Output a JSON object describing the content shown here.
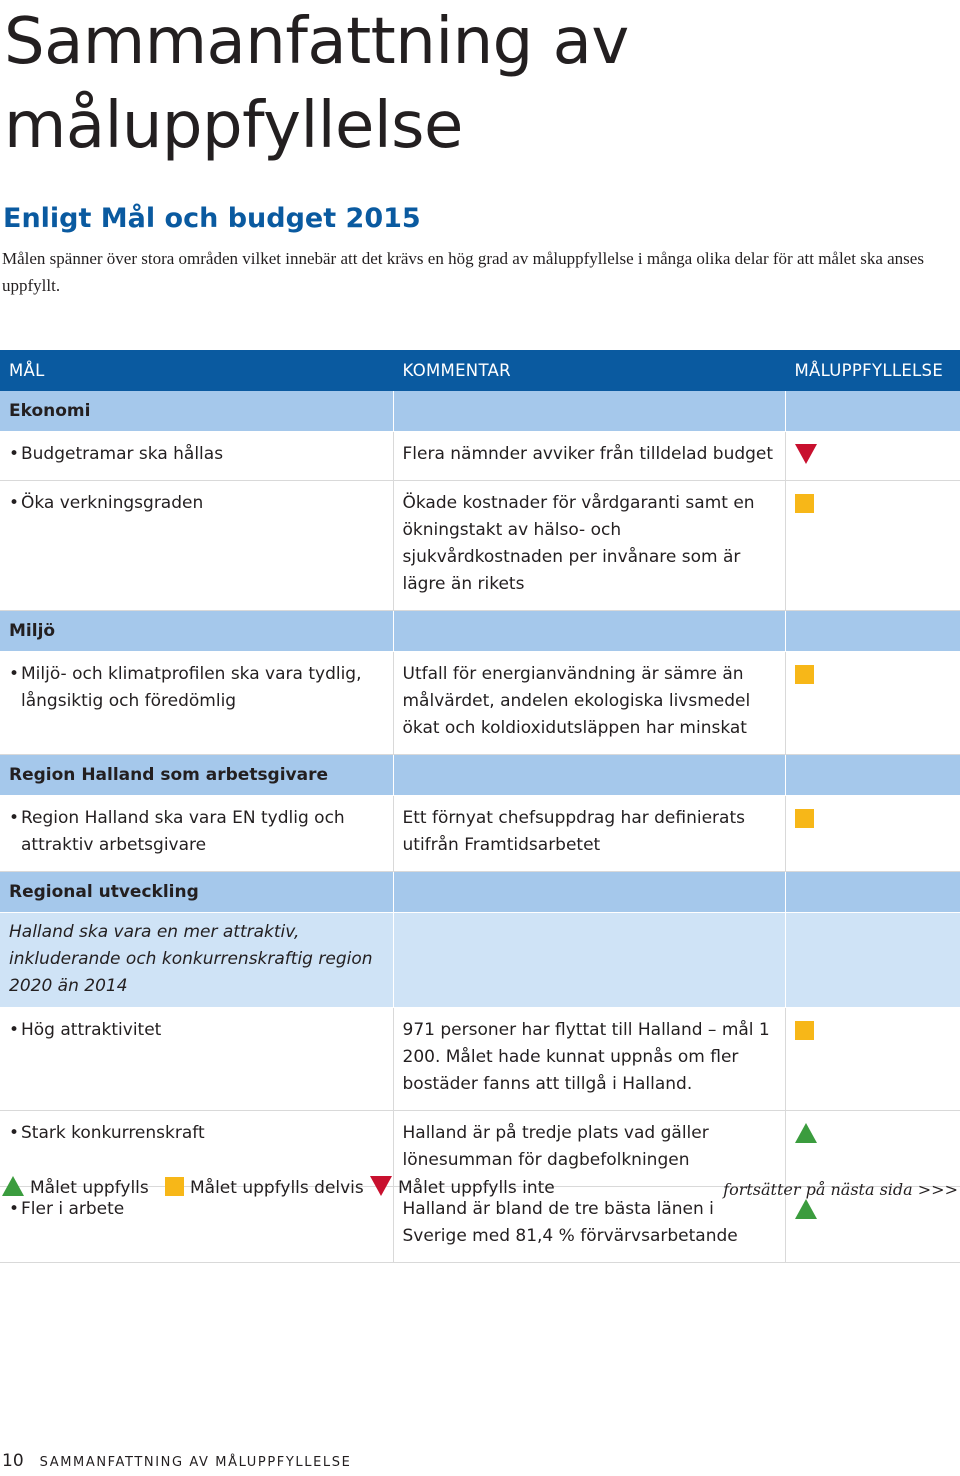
{
  "page": {
    "title_line1": "Sammanfattning av",
    "title_line2": "måluppfyllelse",
    "subtitle": "Enligt Mål och budget 2015",
    "intro": "Målen spänner över stora områden vilket innebär att det krävs en hög grad av måluppfyllelse i många olika delar för att målet ska anses uppfyllt."
  },
  "table": {
    "headers": [
      "MÅL",
      "KOMMENTAR",
      "MÅLUPPFYLLELSE"
    ],
    "sections": [
      {
        "name": "Ekonomi",
        "items": [
          {
            "goal": "Budgetramar ska hållas",
            "comment": "Flera nämnder avviker från tilldelad budget",
            "status": "down"
          },
          {
            "goal": "Öka verkningsgraden",
            "comment": "Ökade kostnader för vårdgaranti samt en ökningstakt av hälso- och sjukvårdkostnaden per invånare som är lägre än rikets",
            "status": "square"
          }
        ]
      },
      {
        "name": "Miljö",
        "items": [
          {
            "goal": "Miljö- och klimatprofilen ska vara tydlig, långsiktig och föredömlig",
            "comment": "Utfall för energianvändning är sämre än målvärdet, andelen ekologiska livsmedel ökat och koldioxidutsläppen har minskat",
            "status": "square"
          }
        ]
      },
      {
        "name": "Region Halland som arbetsgivare",
        "items": [
          {
            "goal": "Region Halland ska vara EN tydlig och attraktiv arbetsgivare",
            "comment": "Ett förnyat chefsuppdrag har definierats utifrån Framtidsarbetet",
            "status": "square"
          }
        ]
      },
      {
        "name": "Regional utveckling",
        "subheading": "Halland ska vara en mer attraktiv, inkluderande och konkurrenskraftig region 2020 än 2014",
        "items": [
          {
            "goal": "Hög attraktivitet",
            "comment": "971 personer har flyttat till Halland – mål 1 200. Målet hade kunnat uppnås om fler bostäder fanns att tillgå i Halland.",
            "status": "square"
          },
          {
            "goal": "Stark konkurrenskraft",
            "comment": "Halland är på tredje plats vad gäller lönesumman för dagbefolkningen",
            "status": "up"
          },
          {
            "goal": "Fler i arbete",
            "comment": "Halland är bland de tre bästa länen i Sverige med 81,4 % förvärvsarbetande",
            "status": "up"
          }
        ]
      }
    ]
  },
  "legend": {
    "met": "Målet uppfylls",
    "partial": "Målet uppfylls delvis",
    "not_met": "Målet uppfylls inte",
    "continues": "fortsätter på nästa sida >>>"
  },
  "footer": {
    "page_number": "10",
    "label": "SAMMANFATTNING AV MÅLUPPFYLLELSE"
  },
  "colors": {
    "header_blue": "#0a5aa0",
    "section_blue": "#a5c8eb",
    "sub_blue": "#cfe3f6",
    "met_green": "#3b9c3e",
    "partial_yellow": "#f7b718",
    "not_met_red": "#c8102e"
  },
  "icons": {
    "up": "green-triangle-up-icon",
    "square": "yellow-square-icon",
    "down": "red-triangle-down-icon"
  }
}
